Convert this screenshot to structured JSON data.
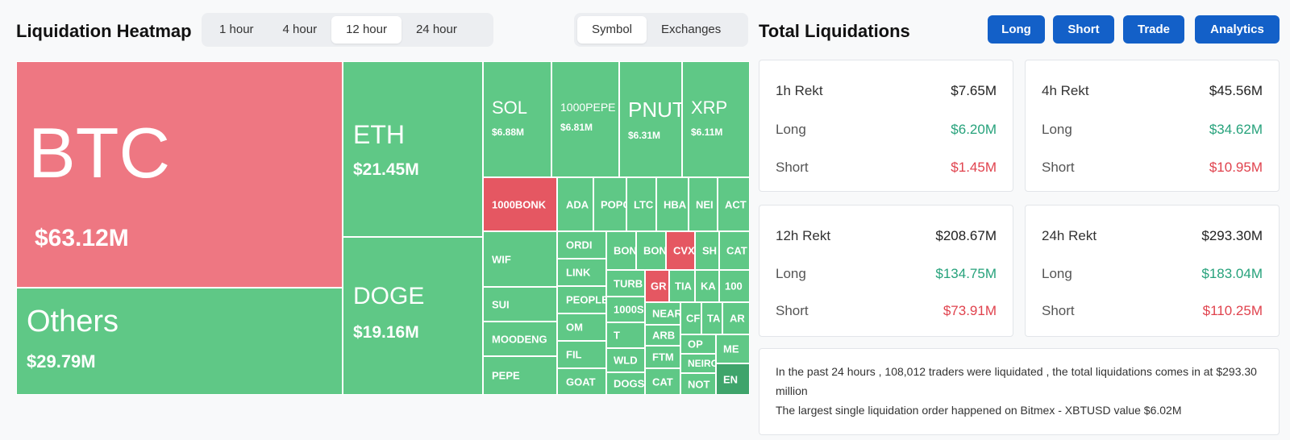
{
  "heatmap": {
    "title": "Liquidation Heatmap",
    "time_tabs": [
      "1 hour",
      "4 hour",
      "12 hour",
      "24 hour"
    ],
    "active_time_tab": "12 hour",
    "view_tabs": [
      "Symbol",
      "Exchanges"
    ],
    "active_view_tab": "Symbol",
    "colors": {
      "long_green": "#5fc886",
      "short_red": "#ee7782",
      "deep_red": "#e55762",
      "dark_green": "#3fa46b"
    },
    "large_tiles": [
      {
        "symbol": "BTC",
        "value": "$63.12M"
      },
      {
        "symbol": "Others",
        "value": "$29.79M"
      },
      {
        "symbol": "ETH",
        "value": "$21.45M"
      },
      {
        "symbol": "DOGE",
        "value": "$19.16M"
      },
      {
        "symbol": "SOL",
        "value": "$6.88M"
      },
      {
        "symbol": "1000PEPE",
        "value": "$6.81M"
      },
      {
        "symbol": "PNUT",
        "value": "$6.31M"
      },
      {
        "symbol": "XRP",
        "value": "$6.11M"
      }
    ],
    "small_tiles": [
      "1000BONK",
      "ADA",
      "POPC",
      "LTC",
      "HBA",
      "NEI",
      "ACT",
      "WIF",
      "ORDI",
      "LINK",
      "PEOPLE",
      "OM",
      "FIL",
      "GOAT",
      "SUI",
      "MOODENG",
      "PEPE",
      "BON",
      "BON",
      "CVX",
      "SH",
      "CAT",
      "TURB",
      "GR",
      "TIA",
      "KA",
      "100",
      "1000S",
      "NEAR",
      "CF",
      "TA",
      "AR",
      "T",
      "ARB",
      "OP",
      "ME",
      "WLD",
      "FTM",
      "NEIRO",
      "DOGS",
      "CAT",
      "NOT",
      "EN"
    ]
  },
  "toolbar": {
    "buttons": [
      "Long",
      "Short",
      "Trade",
      "Analytics"
    ]
  },
  "totals": {
    "title": "Total Liquidations",
    "labels": {
      "long": "Long",
      "short": "Short"
    },
    "cards": [
      {
        "title": "1h Rekt",
        "total": "$7.65M",
        "long": "$6.20M",
        "short": "$1.45M"
      },
      {
        "title": "4h Rekt",
        "total": "$45.56M",
        "long": "$34.62M",
        "short": "$10.95M"
      },
      {
        "title": "12h Rekt",
        "total": "$208.67M",
        "long": "$134.75M",
        "short": "$73.91M"
      },
      {
        "title": "24h Rekt",
        "total": "$293.30M",
        "long": "$183.04M",
        "short": "$110.25M"
      }
    ],
    "summary_line1": "In the past 24 hours , 108,012 traders were liquidated , the total liquidations comes in at $293.30 million",
    "summary_line2": "The largest single liquidation order happened on Bitmex - XBTUSD value $6.02M"
  }
}
